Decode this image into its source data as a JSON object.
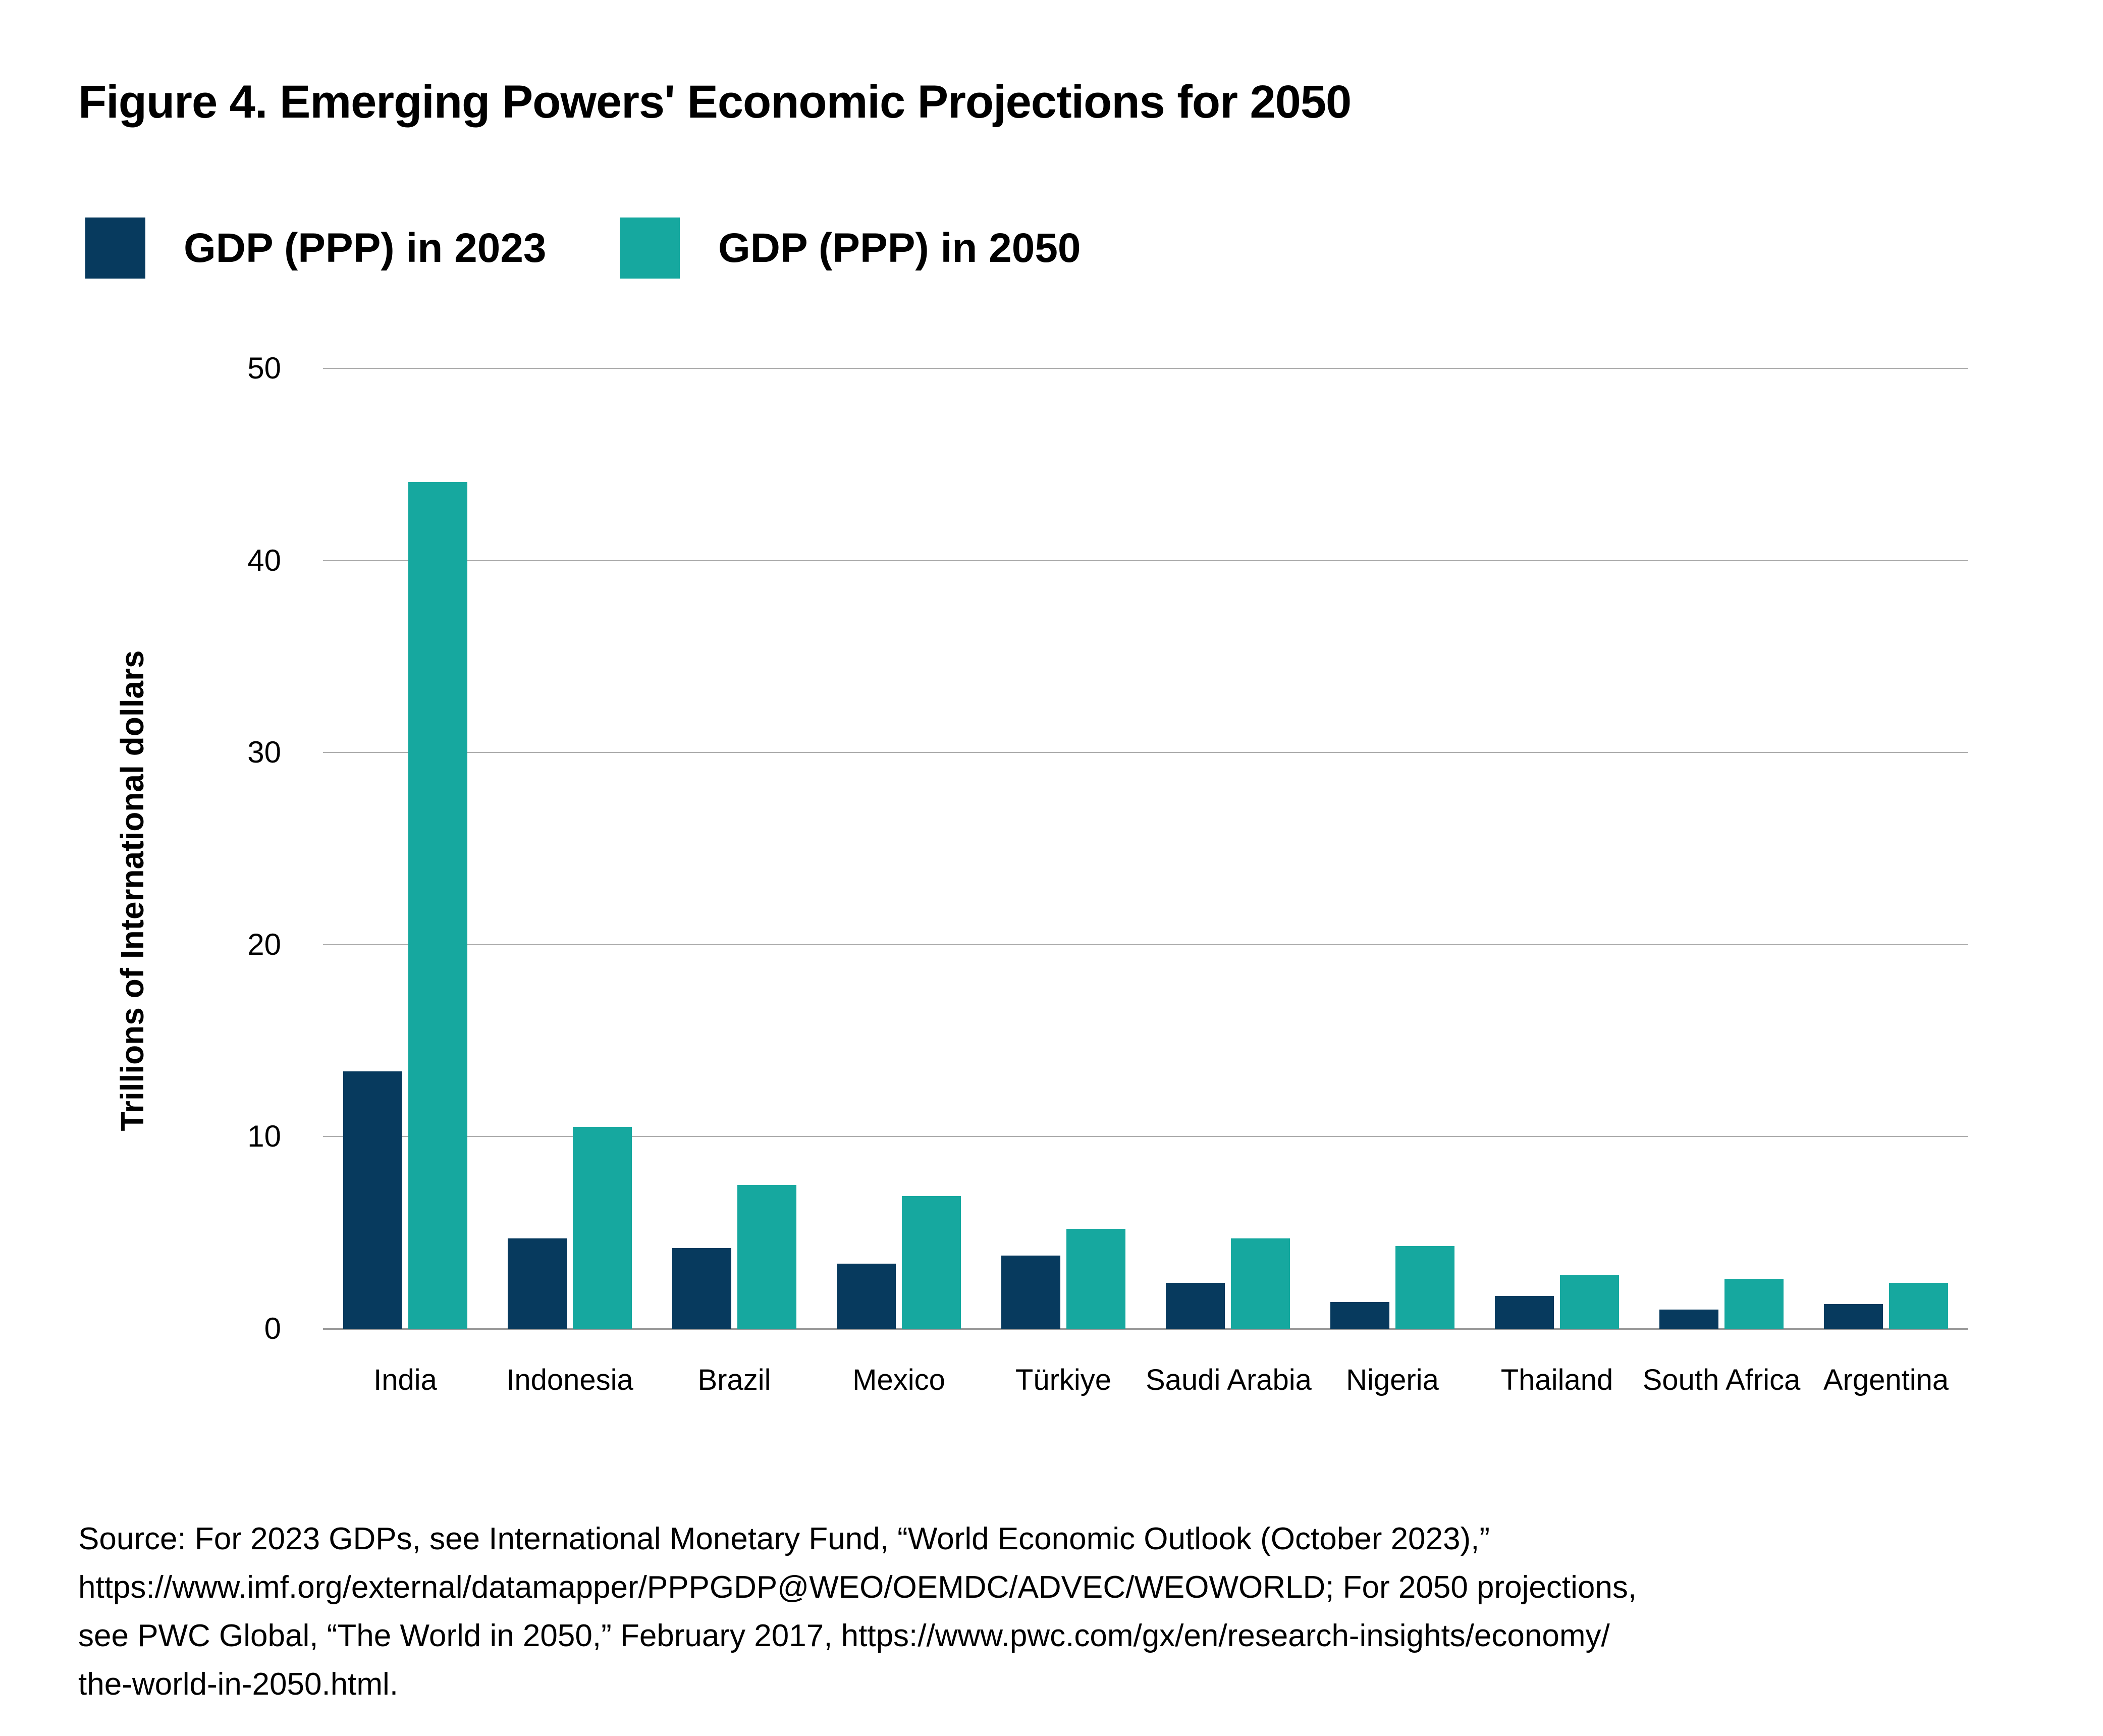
{
  "figure": {
    "title": "Figure 4. Emerging Powers' Economic Projections for 2050"
  },
  "legend": {
    "items": [
      {
        "label": "GDP (PPP) in 2023",
        "color": "#073a5e"
      },
      {
        "label": "GDP (PPP) in 2050",
        "color": "#16a89f"
      }
    ]
  },
  "chart_data": {
    "type": "bar",
    "title": "Figure 4. Emerging Powers' Economic Projections for 2050",
    "categories": [
      "India",
      "Indonesia",
      "Brazil",
      "Mexico",
      "Türkiye",
      "Saudi Arabia",
      "Nigeria",
      "Thailand",
      "South Africa",
      "Argentina"
    ],
    "series": [
      {
        "name": "GDP (PPP) in 2023",
        "color": "#073a5e",
        "values": [
          13.4,
          4.7,
          4.2,
          3.4,
          3.8,
          2.4,
          1.4,
          1.7,
          1.0,
          1.3
        ]
      },
      {
        "name": "GDP (PPP) in 2050",
        "color": "#16a89f",
        "values": [
          44.1,
          10.5,
          7.5,
          6.9,
          5.2,
          4.7,
          4.3,
          2.8,
          2.6,
          2.4
        ]
      }
    ],
    "xlabel": "",
    "ylabel": "Trillions of International dollars",
    "ylim": [
      0,
      50
    ],
    "yticks": [
      0,
      10,
      20,
      30,
      40,
      50
    ],
    "grid": "horizontal",
    "legend_position": "top-left"
  },
  "colors": {
    "navy": "#073a5e",
    "teal": "#16a89f",
    "gridline": "#adadad",
    "baseline": "#979797",
    "text": "#000000",
    "background": "#ffffff"
  },
  "source": {
    "lines": [
      "Source: For 2023 GDPs, see International Monetary Fund, “World Economic Outlook (October 2023),”",
      "https://www.imf.org/external/datamapper/PPPGDP@WEO/OEMDC/ADVEC/WEOWORLD; For 2050 projections,",
      "see PWC Global, “The World in 2050,” February 2017, https://www.pwc.com/gx/en/research-insights/economy/",
      "the-world-in-2050.html."
    ]
  }
}
